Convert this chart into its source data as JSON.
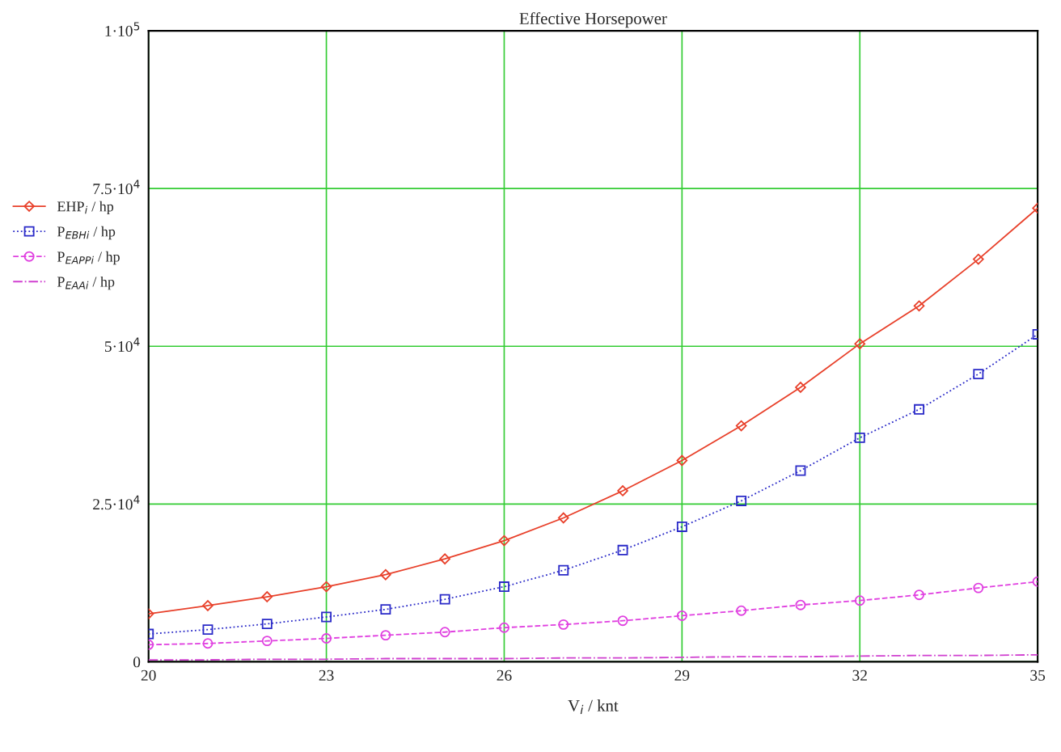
{
  "chart_data": {
    "type": "line",
    "title": "Effective Horsepower",
    "xlabel": "V$_{i}$ / knt",
    "x": [
      20,
      21,
      22,
      23,
      24,
      25,
      26,
      27,
      28,
      29,
      30,
      31,
      32,
      33,
      34,
      35
    ],
    "series": [
      {
        "name": "EHP$_{i}$ / hp",
        "color": "#e8402a",
        "marker": "diamond",
        "line_style": "solid",
        "values": [
          7600,
          8900,
          10300,
          11900,
          13800,
          16300,
          19200,
          22800,
          27100,
          31900,
          37400,
          43500,
          50400,
          56400,
          63800,
          71900
        ]
      },
      {
        "name": "P$_{EBHi}$ / hp",
        "color": "#2a2ac8",
        "marker": "square",
        "line_style": "dotted",
        "values": [
          4400,
          5100,
          6000,
          7100,
          8300,
          9900,
          11900,
          14500,
          17700,
          21400,
          25500,
          30300,
          35500,
          40000,
          45600,
          51900
        ]
      },
      {
        "name": "P$_{EAPPi}$ / hp",
        "color": "#e040e0",
        "marker": "circle",
        "line_style": "dashed",
        "values": [
          2700,
          2900,
          3300,
          3700,
          4200,
          4700,
          5400,
          5900,
          6500,
          7300,
          8100,
          9000,
          9700,
          10600,
          11700,
          12700
        ]
      },
      {
        "name": "P$_{EAAi}$ / hp",
        "color": "#d040d0",
        "marker": "none",
        "line_style": "dashdot",
        "values": [
          300,
          300,
          400,
          400,
          500,
          500,
          500,
          600,
          600,
          700,
          800,
          800,
          900,
          1000,
          1000,
          1100
        ]
      }
    ],
    "xlim": [
      20,
      35
    ],
    "xticks": [
      20,
      23,
      26,
      29,
      32,
      35
    ],
    "ylim": [
      0,
      100000
    ],
    "yticks": [
      0,
      {
        "value": 25000,
        "label": "2.5·10$^{4}$"
      },
      {
        "value": 50000,
        "label": "5·10$^{4}$"
      },
      {
        "value": 75000,
        "label": "7.5·10$^{4}$"
      },
      {
        "value": 100000,
        "label": "1·10$^{5}$"
      }
    ],
    "grid": true,
    "legend": "left"
  }
}
